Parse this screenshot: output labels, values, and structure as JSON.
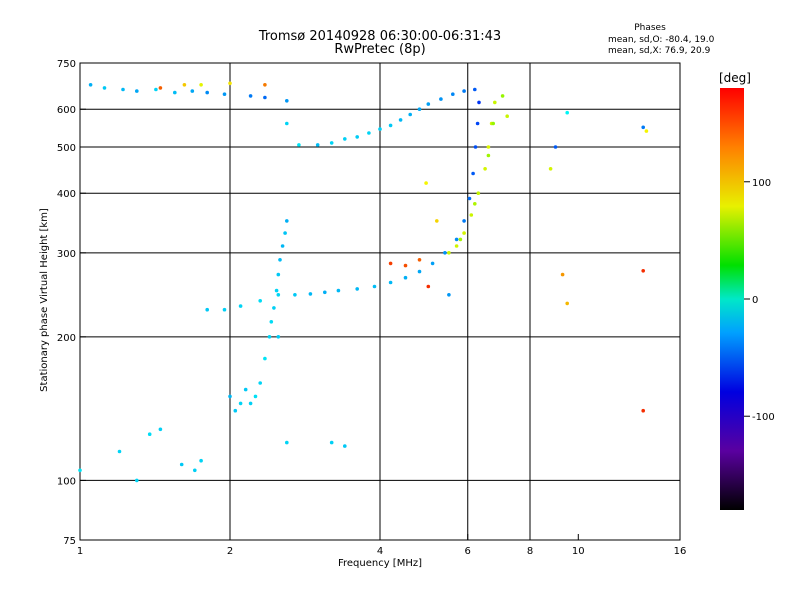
{
  "chart_data": {
    "type": "scatter",
    "title": "Tromsø 20140928 06:30:00-06:31:43",
    "subtitle": "RwPretec (8p)",
    "xlabel": "Frequency [MHz]",
    "ylabel": "Stationary phase Virtual Height [km]",
    "x_scale": "log",
    "y_scale": "log",
    "xlim": [
      1,
      16
    ],
    "ylim": [
      75,
      750
    ],
    "x_ticks": [
      1,
      2,
      4,
      6,
      8,
      10,
      16
    ],
    "x_tick_labels": [
      "1",
      "2",
      "4",
      "6",
      "8",
      "10",
      "16"
    ],
    "x_gridlines": [
      2,
      4,
      6,
      8
    ],
    "y_ticks": [
      75,
      100,
      200,
      300,
      400,
      500,
      600,
      750
    ],
    "y_tick_labels": [
      "75",
      "100",
      "200",
      "300",
      "400",
      "500",
      "600",
      "750"
    ],
    "y_gridlines": [
      100,
      200,
      300,
      400,
      500,
      600
    ],
    "grid": true,
    "stats": {
      "heading": "Phases",
      "line_o": "mean, sd,O: -80.4, 19.0",
      "line_x": "mean, sd,X:  76.9, 20.9"
    },
    "colorbar": {
      "label": "[deg]",
      "min": -180,
      "max": 180,
      "ticks": [
        100,
        0,
        -100
      ],
      "tick_labels": [
        "100",
        "0",
        "-100"
      ]
    },
    "series": [
      {
        "points": [
          [
            1.05,
            675,
            -82
          ],
          [
            1.12,
            665,
            -75
          ],
          [
            1.22,
            660,
            -80
          ],
          [
            1.3,
            655,
            -85
          ],
          [
            1.42,
            660,
            -70
          ],
          [
            1.55,
            650,
            -78
          ],
          [
            1.68,
            655,
            -85
          ],
          [
            1.8,
            650,
            -95
          ],
          [
            1.95,
            645,
            -90
          ],
          [
            2.2,
            640,
            -100
          ],
          [
            2.35,
            635,
            -105
          ],
          [
            2.6,
            625,
            -90
          ],
          [
            2.6,
            560,
            -70
          ],
          [
            2.75,
            505,
            -65
          ],
          [
            3.0,
            505,
            -78
          ],
          [
            3.2,
            510,
            -70
          ],
          [
            3.4,
            520,
            -72
          ],
          [
            3.6,
            525,
            -74
          ],
          [
            3.8,
            535,
            -70
          ],
          [
            4.0,
            545,
            -72
          ],
          [
            4.2,
            555,
            -75
          ],
          [
            4.4,
            570,
            -80
          ],
          [
            4.6,
            585,
            -82
          ],
          [
            4.8,
            600,
            -85
          ],
          [
            5.0,
            615,
            -88
          ],
          [
            5.3,
            630,
            -92
          ],
          [
            5.6,
            645,
            -96
          ],
          [
            5.9,
            655,
            -100
          ],
          [
            6.2,
            660,
            -110
          ],
          [
            1.8,
            228,
            -75
          ],
          [
            1.95,
            228,
            -72
          ],
          [
            2.1,
            232,
            -70
          ],
          [
            2.3,
            238,
            -68
          ],
          [
            2.5,
            245,
            -70
          ],
          [
            2.7,
            245,
            -75
          ],
          [
            2.9,
            246,
            -80
          ],
          [
            3.1,
            248,
            -82
          ],
          [
            3.3,
            250,
            -80
          ],
          [
            3.6,
            252,
            -80
          ],
          [
            3.9,
            255,
            -78
          ],
          [
            4.2,
            260,
            -80
          ],
          [
            4.5,
            266,
            -82
          ],
          [
            4.8,
            274,
            -85
          ],
          [
            5.1,
            285,
            -88
          ],
          [
            5.4,
            300,
            -92
          ],
          [
            5.7,
            320,
            -95
          ],
          [
            5.9,
            350,
            -100
          ],
          [
            6.05,
            390,
            -105
          ],
          [
            6.15,
            440,
            -110
          ],
          [
            6.22,
            500,
            -115
          ],
          [
            6.28,
            560,
            -118
          ],
          [
            6.32,
            620,
            -122
          ],
          [
            2.35,
            180,
            -65
          ],
          [
            2.4,
            200,
            -70
          ],
          [
            2.42,
            215,
            -68
          ],
          [
            2.45,
            230,
            -72
          ],
          [
            2.48,
            250,
            -70
          ],
          [
            2.5,
            270,
            -75
          ],
          [
            2.52,
            290,
            -78
          ],
          [
            2.55,
            310,
            -80
          ],
          [
            2.58,
            330,
            -76
          ],
          [
            2.6,
            350,
            -82
          ],
          [
            2.3,
            160,
            -70
          ],
          [
            2.25,
            150,
            -66
          ],
          [
            2.2,
            145,
            -72
          ],
          [
            2.5,
            200,
            -74
          ],
          [
            2.0,
            150,
            -80
          ],
          [
            2.05,
            140,
            -75
          ],
          [
            2.1,
            145,
            -70
          ],
          [
            2.15,
            155,
            -75
          ],
          [
            2.6,
            120,
            -70
          ],
          [
            3.2,
            120,
            -72
          ],
          [
            3.4,
            118,
            -75
          ],
          [
            1.0,
            105,
            -65
          ],
          [
            1.2,
            115,
            -70
          ],
          [
            1.3,
            100,
            -70
          ],
          [
            1.38,
            125,
            -68
          ],
          [
            1.45,
            128,
            -72
          ],
          [
            1.6,
            108,
            -75
          ],
          [
            1.7,
            105,
            -72
          ],
          [
            1.75,
            110,
            -70
          ],
          [
            5.5,
            245,
            -90
          ],
          [
            9.5,
            590,
            -60
          ],
          [
            9.0,
            500,
            -110
          ],
          [
            13.5,
            550,
            -100
          ]
        ]
      },
      {
        "points": [
          [
            5.5,
            300,
            85
          ],
          [
            5.7,
            310,
            88
          ],
          [
            5.9,
            330,
            90
          ],
          [
            6.1,
            360,
            86
          ],
          [
            6.3,
            400,
            84
          ],
          [
            6.5,
            450,
            90
          ],
          [
            6.6,
            500,
            92
          ],
          [
            6.7,
            560,
            88
          ],
          [
            6.8,
            620,
            85
          ],
          [
            5.8,
            320,
            75
          ],
          [
            6.2,
            380,
            78
          ],
          [
            6.6,
            480,
            72
          ],
          [
            6.75,
            560,
            70
          ],
          [
            7.05,
            640,
            70
          ],
          [
            4.2,
            285,
            160
          ],
          [
            4.5,
            282,
            155
          ],
          [
            4.8,
            290,
            150
          ],
          [
            1.45,
            665,
            150
          ],
          [
            1.62,
            675,
            115
          ],
          [
            1.75,
            675,
            95
          ],
          [
            2.0,
            680,
            105
          ],
          [
            2.35,
            675,
            140
          ],
          [
            4.95,
            420,
            100
          ],
          [
            5.0,
            255,
            165
          ],
          [
            8.8,
            450,
            90
          ],
          [
            9.3,
            270,
            130
          ],
          [
            9.5,
            235,
            120
          ],
          [
            13.5,
            275,
            165
          ],
          [
            13.5,
            140,
            165
          ],
          [
            13.7,
            540,
            100
          ],
          [
            5.2,
            350,
            110
          ],
          [
            7.2,
            580,
            85
          ]
        ]
      }
    ]
  }
}
